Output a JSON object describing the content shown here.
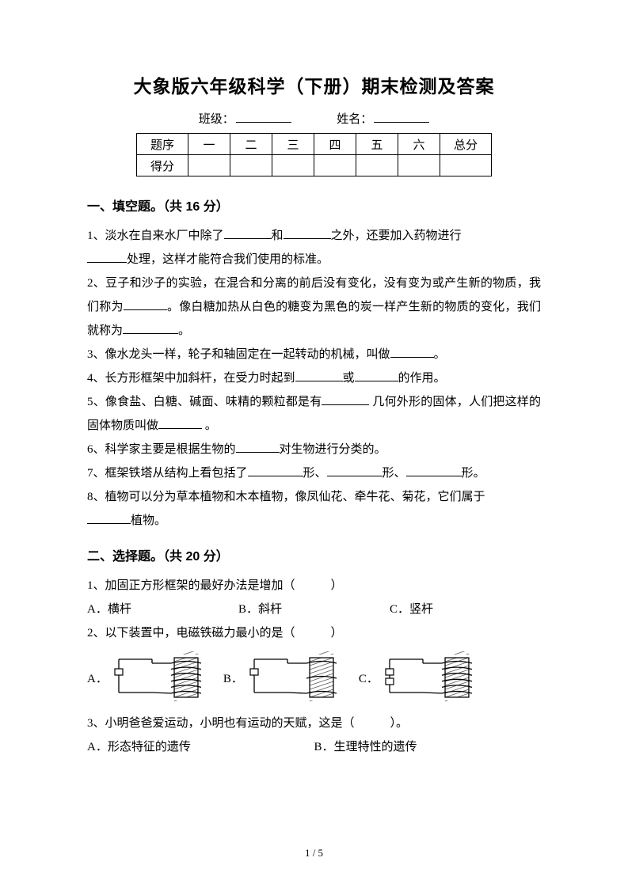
{
  "title": "大象版六年级科学（下册）期末检测及答案",
  "info": {
    "class_label": "班级：",
    "name_label": "姓名："
  },
  "score_table": {
    "row1": [
      "题序",
      "一",
      "二",
      "三",
      "四",
      "五",
      "六",
      "总分"
    ],
    "row2_label": "得分"
  },
  "section1": {
    "heading": "一、填空题。（共 16 分）",
    "q1a": "1、淡水在自来水厂中除了",
    "q1b": "和",
    "q1c": "之外，还要加入药物进行",
    "q1d": "处理，这样才能符合我们使用的标准。",
    "q2a": "2、豆子和沙子的实验，在混合和分离的前后没有变化，没有变为或产生新的物质，我们称为",
    "q2b": "。像白糖加热从白色的糖变为黑色的炭一样产生新的物质的变化，我们就称为",
    "q2c": "。",
    "q3a": "3、像水龙头一样，轮子和轴固定在一起转动的机械，叫做",
    "q3b": "。",
    "q4a": "4、长方形框架中加斜杆，在受力时起到",
    "q4b": "或",
    "q4c": "的作用。",
    "q5a": "5、像食盐、白糖、碱面、味精的颗粒都是有",
    "q5b": " 几何外形的固体，人们把这样的固体物质叫做",
    "q5c": " 。",
    "q6a": "6、科学家主要是根据生物的",
    "q6b": "对生物进行分类的。",
    "q7a": "7、框架铁塔从结构上看包括了",
    "q7b": "形、",
    "q7c": "形、",
    "q7d": "形。",
    "q8a": "8、植物可以分为草本植物和木本植物，像凤仙花、牵牛花、菊花，它们属于",
    "q8b": "植物。"
  },
  "section2": {
    "heading": "二、选择题。（共 20 分）",
    "q1": "1、加固正方形框架的最好办法是增加（　　　）",
    "q1_opts": [
      "A．横杆",
      "B．斜杆",
      "C．竖杆"
    ],
    "q2": "2、以下装置中，电磁铁磁力最小的是（　　　）",
    "q2_labels": [
      "A．",
      "B．",
      "C．"
    ],
    "q3": "3、小明爸爸爱运动，小明也有运动的天赋，这是（　　　）。",
    "q3_opts": [
      "A．形态特征的遗传",
      "B．生理特性的遗传"
    ]
  },
  "diagrams": {
    "coil_color": "#5a5a5a",
    "wire_color": "#000000",
    "turns": [
      6,
      3,
      6
    ],
    "cells": [
      1,
      1,
      2
    ]
  },
  "footer": "1 / 5"
}
